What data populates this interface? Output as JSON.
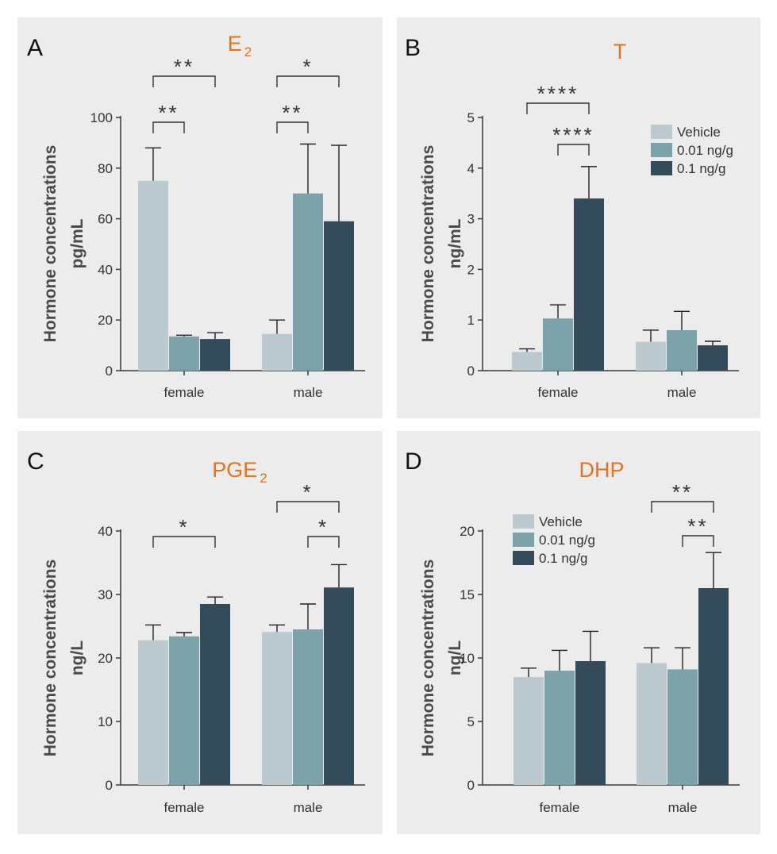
{
  "colors": {
    "vehicle": "#bccacf",
    "low": "#7da3aa",
    "high": "#344b5a",
    "title": "#e8711c",
    "axis": "#3a3a3a"
  },
  "ylabel_line1": "Hormone concentrations",
  "chart_data": [
    {
      "panel": "A",
      "type": "bar",
      "title": "E",
      "title_sub": "2",
      "ylabel_unit": "pg/mL",
      "categories": [
        "female",
        "male"
      ],
      "ylim": [
        0,
        100
      ],
      "yticks": [
        "0",
        "20",
        "40",
        "60",
        "80",
        "100"
      ],
      "series": [
        {
          "values": [
            75,
            14.5
          ],
          "errors": [
            88,
            20
          ]
        },
        {
          "values": [
            13.5,
            70
          ],
          "errors": [
            14,
            89.5
          ]
        },
        {
          "values": [
            12.5,
            59
          ],
          "errors": [
            15,
            89
          ]
        }
      ],
      "significance": [
        {
          "group": 0,
          "from": 0,
          "to": 2,
          "label": "**",
          "level": "outer"
        },
        {
          "group": 0,
          "from": 0,
          "to": 1,
          "label": "**",
          "level": "inner"
        },
        {
          "group": 1,
          "from": 0,
          "to": 2,
          "label": "*",
          "level": "outer"
        },
        {
          "group": 1,
          "from": 0,
          "to": 1,
          "label": "**",
          "level": "inner"
        }
      ],
      "legend": null
    },
    {
      "panel": "B",
      "type": "bar",
      "title": "T",
      "title_sub": "",
      "ylabel_unit": "ng/mL",
      "categories": [
        "female",
        "male"
      ],
      "ylim": [
        0,
        5
      ],
      "yticks": [
        "0",
        "1",
        "2",
        "3",
        "4",
        "5"
      ],
      "series": [
        {
          "values": [
            0.37,
            0.57
          ],
          "errors": [
            0.43,
            0.8
          ]
        },
        {
          "values": [
            1.03,
            0.8
          ],
          "errors": [
            1.3,
            1.17
          ]
        },
        {
          "values": [
            3.4,
            0.5
          ],
          "errors": [
            4.03,
            0.58
          ]
        }
      ],
      "significance": [
        {
          "group": 0,
          "from": 0,
          "to": 2,
          "label": "****",
          "level": "outer"
        },
        {
          "group": 0,
          "from": 1,
          "to": 2,
          "label": "****",
          "level": "inner"
        }
      ],
      "legend": [
        "Vehicle",
        "0.01 ng/g",
        "0.1 ng/g"
      ]
    },
    {
      "panel": "C",
      "type": "bar",
      "title": "PGE",
      "title_sub": "2",
      "ylabel_unit": "ng/L",
      "categories": [
        "female",
        "male"
      ],
      "ylim": [
        0,
        40
      ],
      "yticks": [
        "0",
        "10",
        "20",
        "30",
        "40"
      ],
      "series": [
        {
          "values": [
            22.8,
            24.1
          ],
          "errors": [
            25.2,
            25.2
          ]
        },
        {
          "values": [
            23.4,
            24.5
          ],
          "errors": [
            24,
            28.5
          ]
        },
        {
          "values": [
            28.5,
            31.1
          ],
          "errors": [
            29.6,
            34.7
          ]
        }
      ],
      "significance": [
        {
          "group": 0,
          "from": 0,
          "to": 2,
          "label": "*",
          "level": "inner"
        },
        {
          "group": 1,
          "from": 0,
          "to": 2,
          "label": "*",
          "level": "outer"
        },
        {
          "group": 1,
          "from": 1,
          "to": 2,
          "label": "*",
          "level": "inner"
        }
      ],
      "legend": null
    },
    {
      "panel": "D",
      "type": "bar",
      "title": "DHP",
      "title_sub": "",
      "ylabel_unit": "ng/L",
      "categories": [
        "female",
        "male"
      ],
      "ylim": [
        0,
        20
      ],
      "yticks": [
        "0",
        "5",
        "10",
        "15",
        "20"
      ],
      "series": [
        {
          "values": [
            8.5,
            9.6
          ],
          "errors": [
            9.2,
            10.8
          ]
        },
        {
          "values": [
            9.0,
            9.1
          ],
          "errors": [
            10.6,
            10.8
          ]
        },
        {
          "values": [
            9.75,
            15.5
          ],
          "errors": [
            12.1,
            18.3
          ]
        }
      ],
      "significance": [
        {
          "group": 1,
          "from": 0,
          "to": 2,
          "label": "**",
          "level": "outer"
        },
        {
          "group": 1,
          "from": 1,
          "to": 2,
          "label": "**",
          "level": "inner"
        }
      ],
      "legend": [
        "Vehicle",
        "0.01 ng/g",
        "0.1 ng/g"
      ]
    }
  ]
}
